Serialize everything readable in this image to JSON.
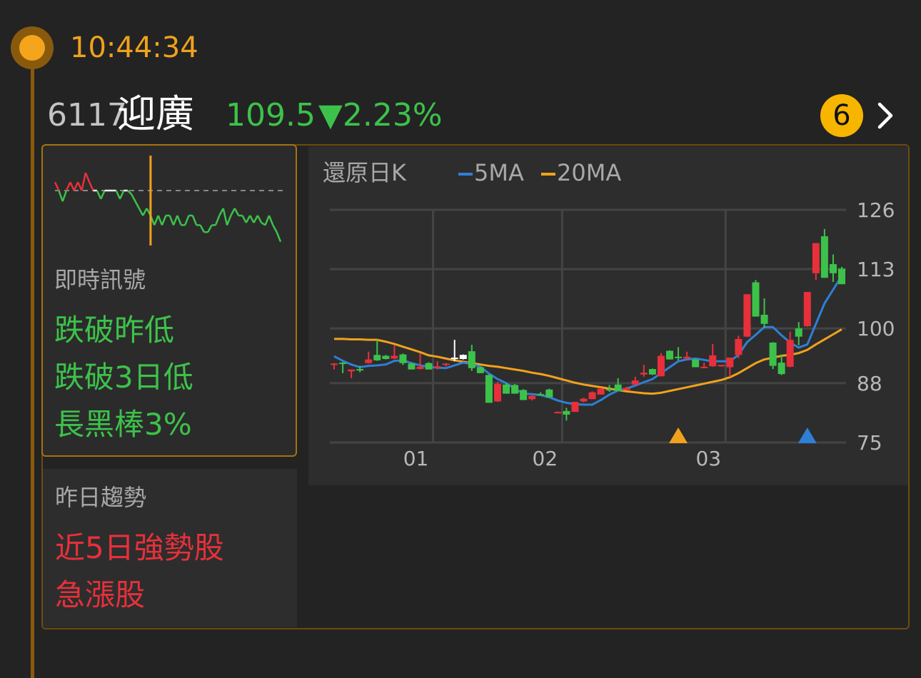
{
  "header": {
    "time": "10:44:34",
    "code": "6117",
    "name": "迎廣",
    "price": "109.5",
    "change": "▼2.23%",
    "badge_count": "6",
    "chevron_icon": "chevron-right-icon"
  },
  "colors": {
    "up": "#e8303a",
    "down": "#3cc24a",
    "accent": "#f5a51c",
    "ma5": "#2f7fd6",
    "ma20": "#f0a21c"
  },
  "intraday": {
    "reference_price": 112.0,
    "prices": [
      112.42,
      112.0,
      111.46,
      112.0,
      112.42,
      112.0,
      112.42,
      112.0,
      112.89,
      112.42,
      112.0,
      112.0,
      111.58,
      112.0,
      112.0,
      112.0,
      112.0,
      111.58,
      112.0,
      112.0,
      111.82,
      111.46,
      111.11,
      110.75,
      111.11,
      110.75,
      110.27,
      110.75,
      110.27,
      110.75,
      110.75,
      110.27,
      110.75,
      110.27,
      110.27,
      110.75,
      110.75,
      110.27,
      110.27,
      109.92,
      109.92,
      110.27,
      110.27,
      110.75,
      111.11,
      110.27,
      110.75,
      111.11,
      110.75,
      110.75,
      110.39,
      110.75,
      110.39,
      110.75,
      110.39,
      110.27,
      110.75,
      110.27,
      109.92,
      109.44
    ],
    "marker_index": 25
  },
  "signals": {
    "realtime_label": "即時訊號",
    "realtime_items": [
      "跌破昨低",
      "跌破3日低",
      "長黑棒3%"
    ],
    "yesterday_label": "昨日趨勢",
    "yesterday_items": [
      "近5日強勢股",
      "急漲股"
    ]
  },
  "chart_data": {
    "type": "candlestick",
    "title": "還原日K",
    "legend": [
      {
        "name": "5MA",
        "color": "#2f7fd6"
      },
      {
        "name": "20MA",
        "color": "#f0a21c"
      }
    ],
    "ylim": [
      75,
      126
    ],
    "yticks": [
      126,
      113,
      100,
      88,
      75
    ],
    "xticks": [
      {
        "label": "01",
        "index": 12
      },
      {
        "label": "02",
        "index": 27
      },
      {
        "label": "03",
        "index": 46
      }
    ],
    "grid": true,
    "ohlc": [
      [
        92.1,
        92.4,
        91.0,
        92.3
      ],
      [
        92.5,
        92.6,
        90.2,
        92.3
      ],
      [
        90.6,
        91.0,
        89.1,
        91.0
      ],
      [
        91.1,
        91.8,
        90.4,
        91.0
      ],
      [
        92.4,
        94.9,
        92.3,
        93.2
      ],
      [
        94.2,
        97.5,
        92.9,
        93.0
      ],
      [
        94.0,
        94.2,
        93.2,
        93.3
      ],
      [
        93.4,
        96.3,
        93.3,
        94.0
      ],
      [
        94.3,
        94.5,
        92.0,
        92.4
      ],
      [
        92.3,
        92.5,
        91.0,
        91.0
      ],
      [
        91.1,
        94.6,
        91.0,
        91.6
      ],
      [
        92.4,
        92.6,
        91.0,
        91.0
      ],
      [
        91.5,
        92.8,
        91.0,
        91.7
      ],
      [
        92.3,
        92.4,
        91.7,
        92.3
      ],
      [
        93.6,
        97.5,
        92.8,
        93.6
      ],
      [
        93.3,
        94.3,
        93.2,
        94.2
      ],
      [
        95.0,
        96.4,
        90.7,
        91.3
      ],
      [
        91.5,
        91.6,
        90.2,
        90.2
      ],
      [
        89.8,
        89.9,
        83.7,
        83.7
      ],
      [
        84.0,
        88.3,
        83.9,
        87.8
      ],
      [
        87.7,
        88.0,
        85.7,
        85.7
      ],
      [
        87.6,
        87.8,
        85.7,
        85.7
      ],
      [
        86.5,
        86.7,
        84.3,
        84.3
      ],
      [
        84.5,
        85.5,
        84.2,
        85.2
      ],
      [
        85.6,
        86.0,
        85.3,
        85.5
      ],
      [
        86.6,
        86.8,
        84.9,
        84.9
      ],
      [
        81.7,
        81.8,
        81.6,
        81.7
      ],
      [
        81.9,
        82.6,
        79.8,
        81.1
      ],
      [
        81.7,
        83.9,
        81.7,
        83.9
      ],
      [
        84.0,
        84.8,
        83.8,
        84.6
      ],
      [
        84.5,
        86.2,
        84.5,
        86.0
      ],
      [
        85.5,
        87.0,
        85.5,
        86.8
      ],
      [
        86.7,
        87.6,
        86.1,
        86.6
      ],
      [
        87.7,
        89.1,
        86.3,
        86.3
      ],
      [
        86.5,
        87.2,
        86.4,
        87.0
      ],
      [
        87.7,
        89.4,
        87.6,
        88.6
      ],
      [
        89.9,
        92.0,
        89.4,
        90.3
      ],
      [
        91.1,
        91.2,
        89.8,
        89.9
      ],
      [
        89.5,
        94.6,
        89.5,
        94.0
      ],
      [
        95.1,
        95.2,
        93.2,
        93.2
      ],
      [
        93.8,
        95.9,
        93.0,
        93.7
      ],
      [
        93.4,
        94.9,
        93.3,
        93.8
      ],
      [
        93.2,
        93.3,
        91.5,
        91.5
      ],
      [
        91.5,
        92.5,
        91.3,
        91.6
      ],
      [
        91.7,
        96.6,
        91.6,
        94.1
      ],
      [
        91.8,
        92.0,
        91.6,
        92.0
      ],
      [
        91.5,
        93.6,
        89.4,
        93.6
      ],
      [
        94.2,
        98.4,
        93.5,
        97.7
      ],
      [
        98.2,
        107.5,
        98.1,
        107.5
      ],
      [
        110.1,
        110.6,
        102.6,
        102.6
      ],
      [
        103.0,
        106.6,
        100.1,
        101.0
      ],
      [
        96.9,
        97.0,
        91.1,
        91.8
      ],
      [
        92.5,
        94.3,
        89.8,
        90.0
      ],
      [
        91.6,
        99.3,
        91.5,
        97.5
      ],
      [
        100.0,
        101.4,
        96.3,
        98.2
      ],
      [
        100.5,
        108.0,
        100.4,
        108.0
      ],
      [
        112.1,
        118.7,
        110.6,
        118.7
      ],
      [
        120.2,
        121.8,
        111.1,
        111.1
      ],
      [
        114.1,
        116.2,
        110.2,
        112.1
      ],
      [
        113.1,
        113.5,
        109.7,
        109.7
      ]
    ],
    "neutral_indices": [
      14,
      15
    ],
    "ma5": [
      93.9,
      92.9,
      92.1,
      91.5,
      91.8,
      91.9,
      92.1,
      92.9,
      93.0,
      92.4,
      91.9,
      91.6,
      91.4,
      91.3,
      91.9,
      92.5,
      92.2,
      91.6,
      90.1,
      88.9,
      88.0,
      86.8,
      85.7,
      85.6,
      85.4,
      84.9,
      84.2,
      83.7,
      83.4,
      83.3,
      83.3,
      84.3,
      85.5,
      86.4,
      86.8,
      87.5,
      88.2,
      88.9,
      90.2,
      91.5,
      92.8,
      93.2,
      93.4,
      93.1,
      92.8,
      92.8,
      92.8,
      94.2,
      97.0,
      98.6,
      100.3,
      100.3,
      98.5,
      96.9,
      95.8,
      96.5,
      101.0,
      105.5,
      108.5,
      111.5
    ],
    "ma20": [
      97.7,
      97.7,
      97.6,
      97.6,
      97.5,
      97.5,
      97.1,
      96.6,
      96.0,
      95.4,
      94.8,
      94.1,
      93.8,
      93.4,
      93.0,
      92.7,
      92.4,
      92.1,
      91.8,
      91.6,
      91.3,
      91.0,
      90.7,
      90.3,
      90.0,
      89.6,
      89.1,
      88.6,
      88.1,
      87.7,
      87.4,
      87.1,
      86.8,
      86.5,
      86.2,
      86.0,
      85.8,
      85.7,
      85.9,
      86.3,
      86.7,
      87.1,
      87.5,
      87.9,
      88.3,
      88.7,
      89.3,
      90.2,
      91.3,
      92.4,
      93.2,
      93.6,
      94.0,
      94.2,
      94.6,
      95.3,
      96.5,
      97.6,
      98.7,
      99.8
    ],
    "markers": [
      {
        "index": 41,
        "color": "#f0a21c",
        "shape": "triangle-up"
      },
      {
        "index": 56,
        "color": "#2f7fd6",
        "shape": "triangle-up"
      }
    ]
  }
}
